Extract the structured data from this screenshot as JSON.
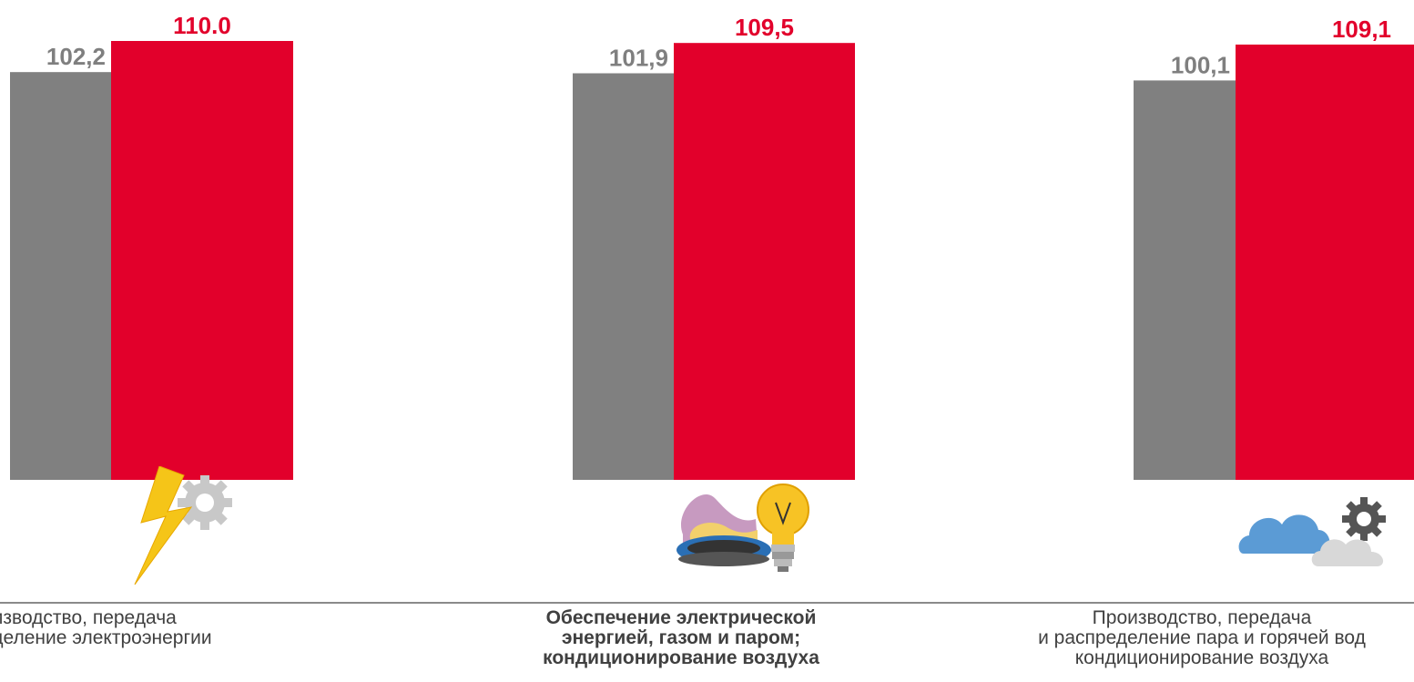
{
  "chart_data": {
    "type": "bar",
    "categories": [
      [
        "оизводство, передача",
        "еделение электроэнергии"
      ],
      [
        "Обеспечение электрической",
        "энергией, газом и паром;",
        "кондиционирование воздуха"
      ],
      [
        "Производство, передача",
        "и распределение пара и горячей вод",
        "кондиционирование воздуха"
      ]
    ],
    "series": [
      {
        "values": [
          102.2,
          101.9,
          100.1
        ],
        "labels": [
          "102,2",
          "101,9",
          "100,1"
        ],
        "color": "#808080"
      },
      {
        "values": [
          110.0,
          109.5,
          109.1
        ],
        "labels": [
          "110.0",
          "109,5",
          "109,1"
        ],
        "color": "#e2002b"
      }
    ],
    "ylim": [
      0,
      110
    ],
    "grid": false
  },
  "icons": [
    "lightning-gear-icon",
    "gas-flame-bulb-icon",
    "cloud-gear-icon"
  ],
  "colors": {
    "gray": "#808080",
    "red": "#e2002b",
    "gray_label": "#7f7f7f",
    "red_label": "#e2002b"
  }
}
